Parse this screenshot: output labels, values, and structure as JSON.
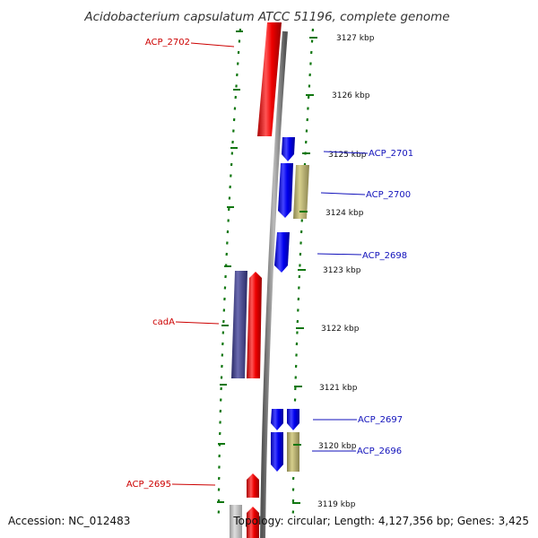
{
  "title": "Acidobacterium capsulatum ATCC 51196, complete genome",
  "footer": {
    "accession": "Accession: NC_012483",
    "topology": "Topology: circular; Length: 4,127,356 bp; Genes: 3,425"
  },
  "colors": {
    "background": "#ffffff",
    "forward_gene": "#0000ee",
    "reverse_gene": "#ee0000",
    "feature_olive": "#b8b070",
    "feature_purple": "#44448a",
    "feature_gray": "#bbbbbb",
    "backbone": "#888888",
    "ruler_ticks": "#117711",
    "label_forward": "#1111bb",
    "label_reverse": "#cc0000"
  },
  "ruler": {
    "unit": "kbp",
    "tick_labels": [
      "3127 kbp",
      "3126 kbp",
      "3125 kbp",
      "3124 kbp",
      "3123 kbp",
      "3122 kbp",
      "3121 kbp",
      "3120 kbp",
      "3119 kbp"
    ]
  },
  "gene_labels": {
    "forward": [
      "ACP_2701",
      "ACP_2700",
      "ACP_2698",
      "ACP_2697",
      "ACP_2696"
    ],
    "reverse": [
      "ACP_2702",
      "cadA",
      "ACP_2695"
    ]
  }
}
